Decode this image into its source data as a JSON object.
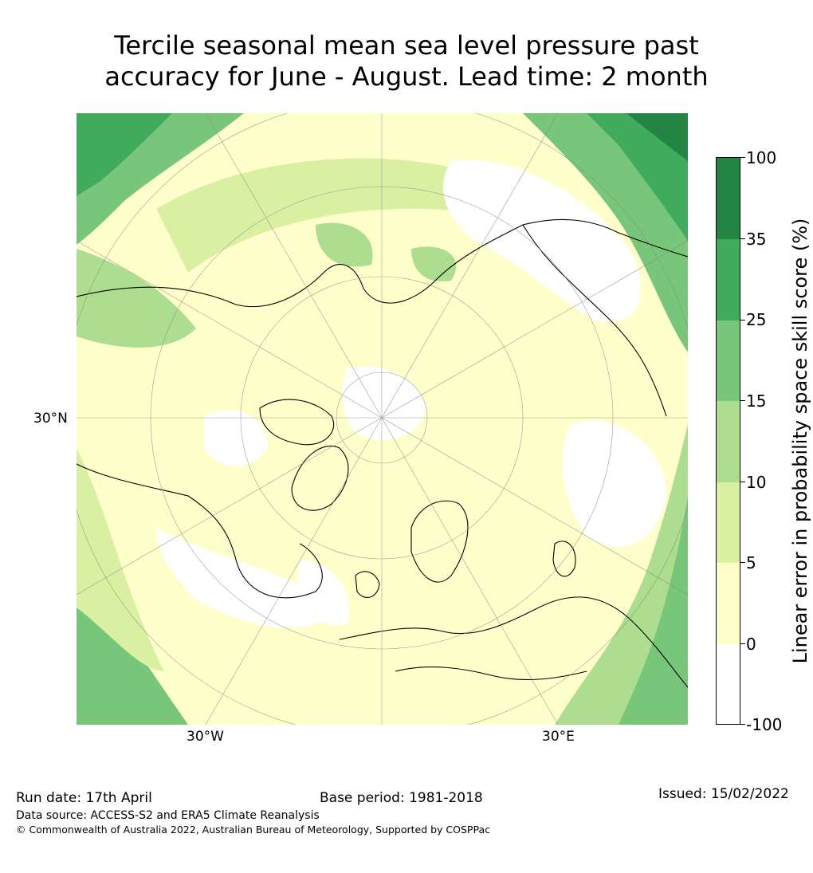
{
  "title_line1": "Tercile seasonal mean sea level pressure past",
  "title_line2": "accuracy for June - August. Lead time: 2 month",
  "map": {
    "lat_label": "30°N",
    "lon_label_west": "30°W",
    "lon_label_east": "30°E"
  },
  "colorbar": {
    "title": "Linear error in probability space skill score (%)",
    "ticks": [
      "100",
      "35",
      "25",
      "15",
      "10",
      "5",
      "0",
      "-100"
    ],
    "colors": [
      "#238443",
      "#41ab5d",
      "#78c679",
      "#addd8e",
      "#d9f0a3",
      "#ffffcc",
      "#ffffff"
    ]
  },
  "footer": {
    "run_date": "Run date: 17th April",
    "base_period": "Base period: 1981-2018",
    "issued": "Issued: 15/02/2022",
    "data_source": "Data source: ACCESS-S2 and ERA5 Climate Reanalysis",
    "copyright": "© Commonwealth of Australia 2022, Australian Bureau of Meteorology, Supported by COSPPac"
  }
}
